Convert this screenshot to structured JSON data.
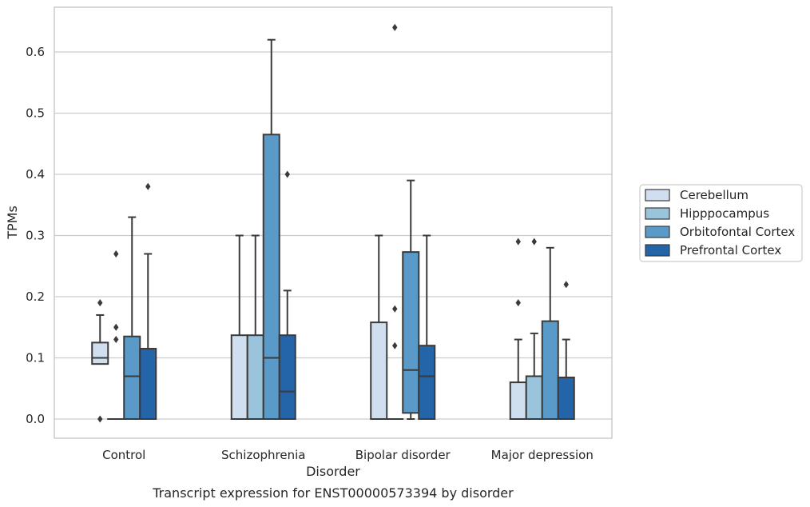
{
  "chart_data": {
    "type": "boxplot",
    "caption": "Transcript expression for ENST00000573394 by disorder",
    "xlabel": "Disorder",
    "ylabel": "TPMs",
    "ylim": [
      -0.032,
      0.675
    ],
    "yticks": [
      0.0,
      0.1,
      0.2,
      0.3,
      0.4,
      0.5,
      0.6
    ],
    "ytick_labels": [
      "0.0",
      "0.1",
      "0.2",
      "0.3",
      "0.4",
      "0.5",
      "0.6"
    ],
    "grid": "horizontal",
    "legend_position": "right",
    "categories": [
      "Control",
      "Schizophrenia",
      "Bipolar disorder",
      "Major depression"
    ],
    "series": [
      {
        "name": "Cerebellum",
        "color": "#cfdfef",
        "boxes": [
          {
            "whislo": 0.09,
            "q1": 0.09,
            "med": 0.1,
            "q3": 0.125,
            "whishi": 0.17,
            "fliers": [
              0.19,
              0.0
            ]
          },
          {
            "whislo": 0.0,
            "q1": 0.0,
            "med": 0.0,
            "q3": 0.137,
            "whishi": 0.3,
            "fliers": []
          },
          {
            "whislo": 0.0,
            "q1": 0.0,
            "med": 0.0,
            "q3": 0.158,
            "whishi": 0.3,
            "fliers": []
          },
          {
            "whislo": 0.0,
            "q1": 0.0,
            "med": 0.0,
            "q3": 0.06,
            "whishi": 0.13,
            "fliers": [
              0.29,
              0.19
            ]
          }
        ]
      },
      {
        "name": "Hipppocampus",
        "color": "#9ac3dc",
        "boxes": [
          {
            "whislo": 0.0,
            "q1": 0.0,
            "med": 0.0,
            "q3": 0.0,
            "whishi": 0.0,
            "fliers": [
              0.27,
              0.15,
              0.13
            ]
          },
          {
            "whislo": 0.0,
            "q1": 0.0,
            "med": 0.0,
            "q3": 0.137,
            "whishi": 0.3,
            "fliers": []
          },
          {
            "whislo": 0.0,
            "q1": 0.0,
            "med": 0.0,
            "q3": 0.0,
            "whishi": 0.0,
            "fliers": [
              0.64,
              0.18,
              0.12
            ]
          },
          {
            "whislo": 0.0,
            "q1": 0.0,
            "med": 0.0,
            "q3": 0.07,
            "whishi": 0.14,
            "fliers": [
              0.29
            ]
          }
        ]
      },
      {
        "name": "Orbitofontal Cortex",
        "color": "#5a9ac8",
        "boxes": [
          {
            "whislo": 0.0,
            "q1": 0.0,
            "med": 0.07,
            "q3": 0.135,
            "whishi": 0.33,
            "fliers": []
          },
          {
            "whislo": 0.0,
            "q1": 0.0,
            "med": 0.1,
            "q3": 0.465,
            "whishi": 0.62,
            "fliers": []
          },
          {
            "whislo": 0.0,
            "q1": 0.01,
            "med": 0.08,
            "q3": 0.273,
            "whishi": 0.39,
            "fliers": []
          },
          {
            "whislo": 0.0,
            "q1": 0.0,
            "med": 0.0,
            "q3": 0.16,
            "whishi": 0.28,
            "fliers": []
          }
        ]
      },
      {
        "name": "Prefrontal Cortex",
        "color": "#2464a8",
        "boxes": [
          {
            "whislo": 0.0,
            "q1": 0.0,
            "med": 0.0,
            "q3": 0.115,
            "whishi": 0.27,
            "fliers": [
              0.38
            ]
          },
          {
            "whislo": 0.0,
            "q1": 0.0,
            "med": 0.045,
            "q3": 0.137,
            "whishi": 0.21,
            "fliers": [
              0.4
            ]
          },
          {
            "whislo": 0.0,
            "q1": 0.0,
            "med": 0.07,
            "q3": 0.12,
            "whishi": 0.3,
            "fliers": []
          },
          {
            "whislo": 0.0,
            "q1": 0.0,
            "med": 0.0,
            "q3": 0.068,
            "whishi": 0.13,
            "fliers": [
              0.22
            ]
          }
        ]
      }
    ]
  }
}
